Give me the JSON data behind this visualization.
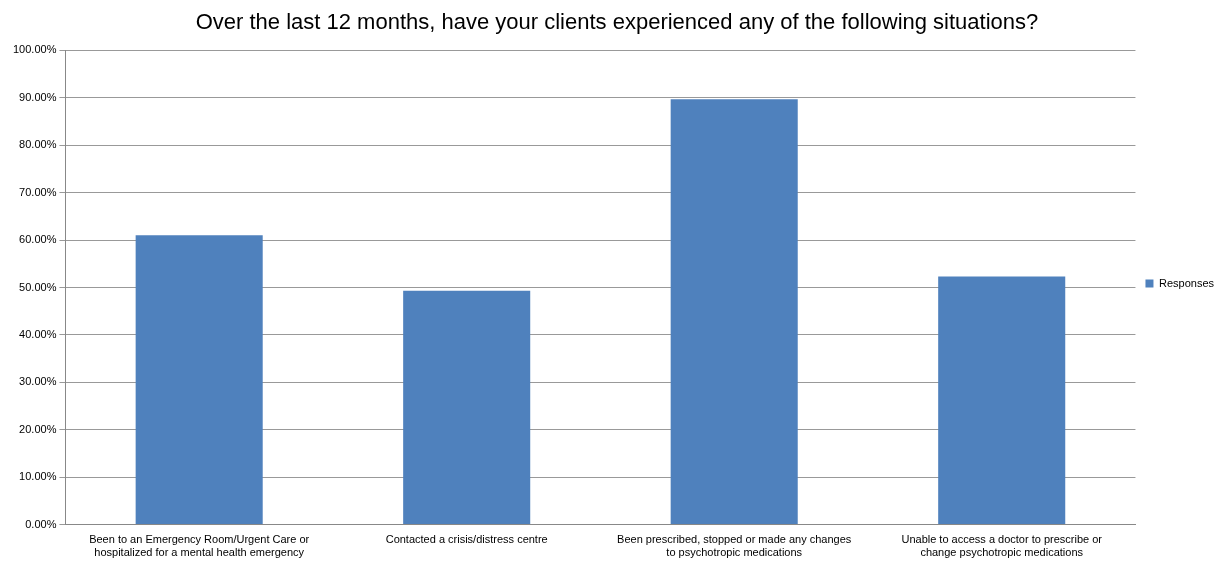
{
  "chart_data": {
    "type": "bar",
    "title": "Over the last 12 months, have your clients experienced any of the following situations?",
    "categories": [
      "Been to an Emergency Room/Urgent Care or hospitalized for a mental health emergency",
      "Contacted a crisis/distress centre",
      "Been prescribed, stopped or made any changes to psychotropic medications",
      "Unable to access a doctor to prescribe or change psychotropic medications"
    ],
    "series": [
      {
        "name": "Responses",
        "color": "#4f81bd",
        "values": [
          61.0,
          49.3,
          89.7,
          52.3
        ]
      }
    ],
    "ylim": [
      0,
      100
    ],
    "yticks": [
      {
        "value": 0,
        "label": "0.00%"
      },
      {
        "value": 10,
        "label": "10.00%"
      },
      {
        "value": 20,
        "label": "20.00%"
      },
      {
        "value": 30,
        "label": "30.00%"
      },
      {
        "value": 40,
        "label": "40.00%"
      },
      {
        "value": 50,
        "label": "50.00%"
      },
      {
        "value": 60,
        "label": "60.00%"
      },
      {
        "value": 70,
        "label": "70.00%"
      },
      {
        "value": 80,
        "label": "80.00%"
      },
      {
        "value": 90,
        "label": "90.00%"
      },
      {
        "value": 100,
        "label": "100.00%"
      }
    ],
    "grid": "y",
    "legend": "right"
  }
}
